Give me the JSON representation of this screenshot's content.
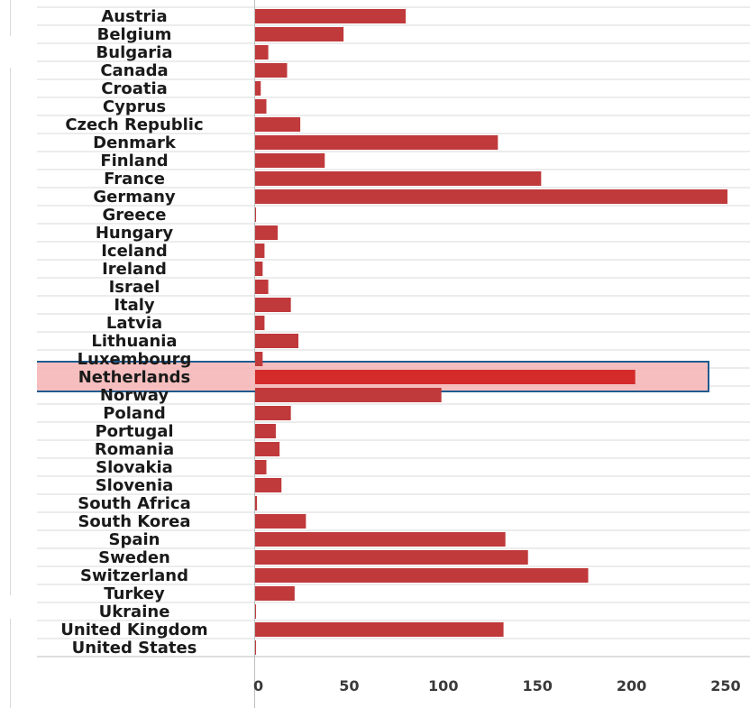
{
  "chart_data": {
    "type": "bar",
    "orientation": "horizontal",
    "categories": [
      "Austria",
      "Belgium",
      "Bulgaria",
      "Canada",
      "Croatia",
      "Cyprus",
      "Czech Republic",
      "Denmark",
      "Finland",
      "France",
      "Germany",
      "Greece",
      "Hungary",
      "Iceland",
      "Ireland",
      "Israel",
      "Italy",
      "Latvia",
      "Lithuania",
      "Luxembourg",
      "Netherlands",
      "Norway",
      "Poland",
      "Portugal",
      "Romania",
      "Slovakia",
      "Slovenia",
      "South Africa",
      "South Korea",
      "Spain",
      "Sweden",
      "Switzerland",
      "Turkey",
      "Ukraine",
      "United Kingdom",
      "United States"
    ],
    "values": [
      80,
      47,
      7,
      17,
      3,
      6,
      24,
      129,
      37,
      152,
      251,
      0.5,
      12,
      5,
      4,
      7,
      19,
      5,
      23,
      4,
      202,
      99,
      19,
      11,
      13,
      6,
      14,
      1,
      27,
      133,
      145,
      177,
      21,
      0.5,
      132,
      0.5
    ],
    "highlighted_category": "Netherlands",
    "x_ticks": [
      0,
      50,
      100,
      150,
      200,
      250
    ],
    "xlim": [
      0,
      255
    ],
    "grid": false,
    "colors": {
      "bar": "#c0393b",
      "bar_highlight": "#d42a2a",
      "highlight_fill": "#f5b3b3",
      "highlight_border": "#1f5b8f",
      "row_line": "#d9d9d9",
      "axis_line": "#bfbfbf"
    }
  }
}
